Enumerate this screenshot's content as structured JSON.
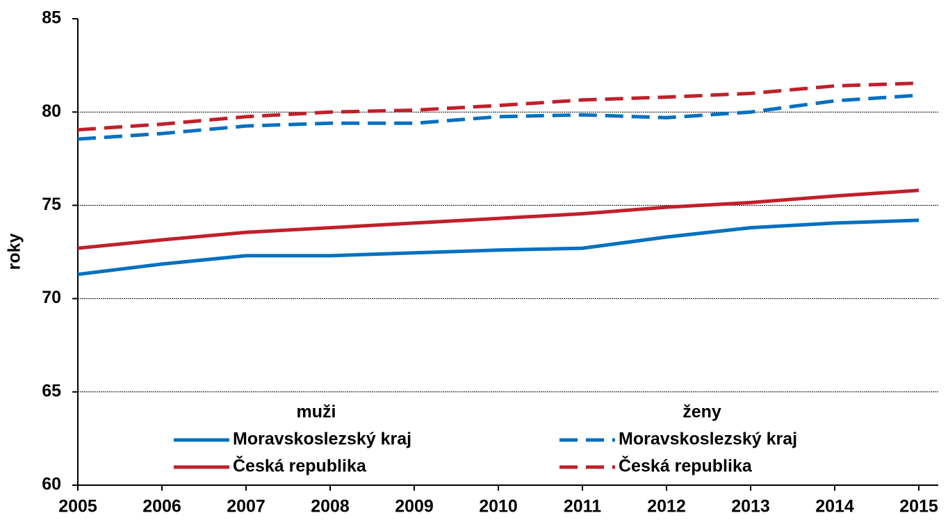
{
  "chart_data": {
    "type": "line",
    "y_label": "roky",
    "categories": [
      "2005",
      "2006",
      "2007",
      "2008",
      "2009",
      "2010",
      "2011",
      "2012",
      "2013",
      "2014",
      "2015"
    ],
    "legend_titles": [
      "muži",
      "ženy"
    ],
    "series": [
      {
        "name": "Moravskoslezský kraj",
        "color": "#0070c0",
        "style": "solid",
        "values": [
          71.3,
          71.85,
          72.3,
          72.3,
          72.45,
          72.6,
          72.7,
          73.3,
          73.8,
          74.05,
          74.2
        ]
      },
      {
        "name": "Česká republika",
        "color": "#c0202a",
        "style": "solid",
        "values": [
          72.7,
          73.15,
          73.55,
          73.8,
          74.05,
          74.3,
          74.55,
          74.9,
          75.15,
          75.5,
          75.8
        ]
      },
      {
        "name": "Moravskoslezský kraj",
        "color": "#0070c0",
        "style": "dashed",
        "values": [
          78.55,
          78.85,
          79.25,
          79.4,
          79.4,
          79.75,
          79.85,
          79.7,
          80.0,
          80.6,
          80.9
        ]
      },
      {
        "name": "Česká republika",
        "color": "#c0202a",
        "style": "dashed",
        "values": [
          79.05,
          79.35,
          79.75,
          80.0,
          80.1,
          80.35,
          80.65,
          80.8,
          81.0,
          81.4,
          81.55
        ]
      }
    ],
    "ylim": [
      60,
      85
    ],
    "yticks": [
      60,
      65,
      70,
      75,
      80,
      85
    ],
    "grid": true
  }
}
